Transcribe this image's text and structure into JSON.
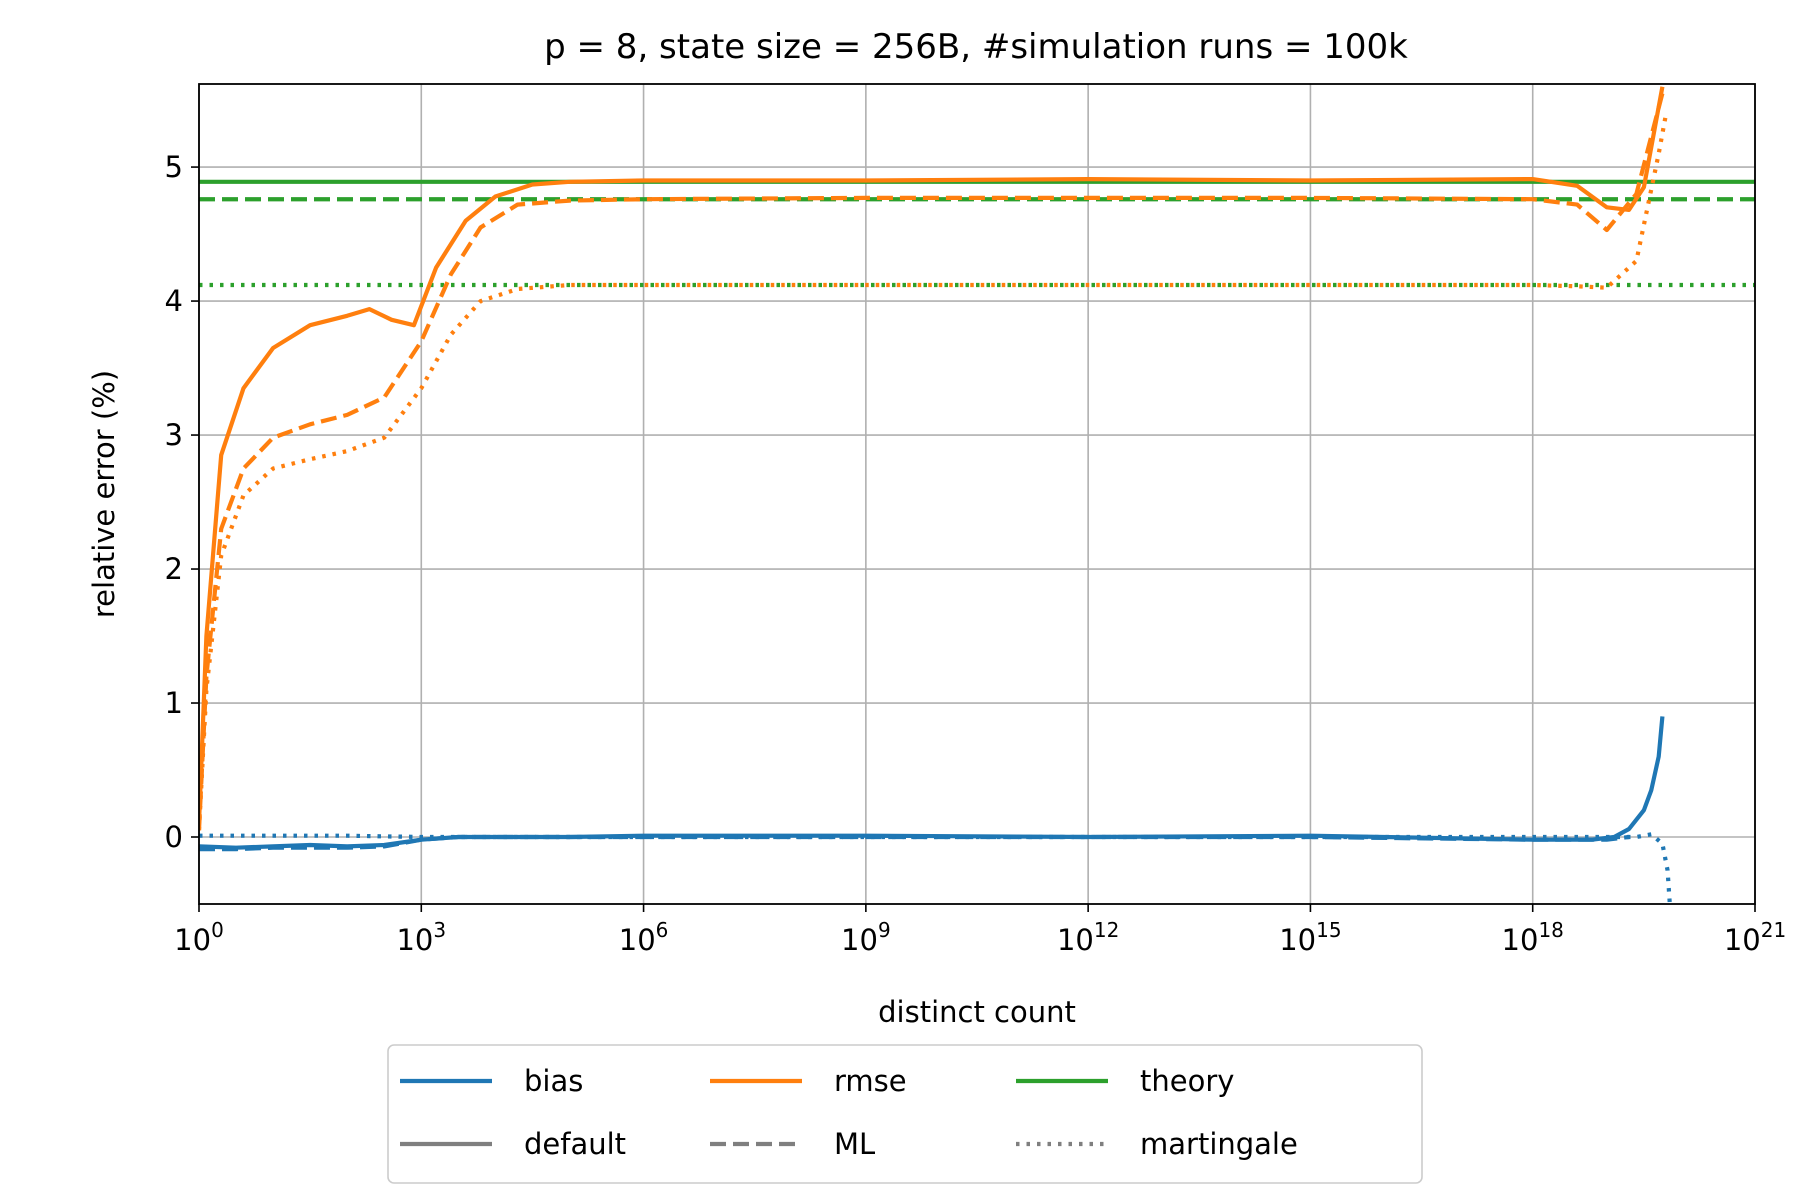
{
  "chart_data": {
    "type": "line",
    "title": "p = 8, state size = 256B, #simulation runs = 100k",
    "xlabel": "distinct count",
    "ylabel": "relative error (%)",
    "x_scale": "log10",
    "xlim": [
      1,
      1e+21
    ],
    "ylim": [
      -0.5,
      5.62
    ],
    "grid": true,
    "x_ticks": [
      {
        "exp": 0,
        "base": "10",
        "sup": "0"
      },
      {
        "exp": 3,
        "base": "10",
        "sup": "3"
      },
      {
        "exp": 6,
        "base": "10",
        "sup": "6"
      },
      {
        "exp": 9,
        "base": "10",
        "sup": "9"
      },
      {
        "exp": 12,
        "base": "10",
        "sup": "12"
      },
      {
        "exp": 15,
        "base": "10",
        "sup": "15"
      },
      {
        "exp": 18,
        "base": "10",
        "sup": "18"
      },
      {
        "exp": 21,
        "base": "10",
        "sup": "21"
      }
    ],
    "y_ticks": [
      {
        "value": 0,
        "label": "0"
      },
      {
        "value": 1,
        "label": "1"
      },
      {
        "value": 2,
        "label": "2"
      },
      {
        "value": 3,
        "label": "3"
      },
      {
        "value": 4,
        "label": "4"
      },
      {
        "value": 5,
        "label": "5"
      }
    ],
    "colors": {
      "bias": "#1f77b4",
      "rmse": "#ff7f0e",
      "theory": "#2ca02c",
      "legend_gray": "#7f7f7f"
    },
    "legend": {
      "placement": "bottom-center",
      "entries": [
        {
          "label": "bias",
          "kind": "color",
          "color": "#1f77b4",
          "style": "solid"
        },
        {
          "label": "rmse",
          "kind": "color",
          "color": "#ff7f0e",
          "style": "solid"
        },
        {
          "label": "theory",
          "kind": "color",
          "color": "#2ca02c",
          "style": "solid"
        },
        {
          "label": "default",
          "kind": "style",
          "color": "#7f7f7f",
          "style": "solid"
        },
        {
          "label": "ML",
          "kind": "style",
          "color": "#7f7f7f",
          "style": "dashed"
        },
        {
          "label": "martingale",
          "kind": "style",
          "color": "#7f7f7f",
          "style": "dotted"
        }
      ]
    },
    "series": [
      {
        "metric": "theory",
        "estimator": "default",
        "color": "#2ca02c",
        "style": "solid",
        "hline": 4.89
      },
      {
        "metric": "theory",
        "estimator": "ML",
        "color": "#2ca02c",
        "style": "dashed",
        "hline": 4.76
      },
      {
        "metric": "theory",
        "estimator": "martingale",
        "color": "#2ca02c",
        "style": "dotted",
        "hline": 4.12
      },
      {
        "metric": "rmse",
        "estimator": "default",
        "color": "#ff7f0e",
        "style": "solid",
        "log10x": [
          0,
          0.1,
          0.3,
          0.6,
          1.0,
          1.5,
          2.0,
          2.3,
          2.6,
          2.9,
          3.2,
          3.6,
          4.0,
          4.5,
          5.0,
          6,
          9,
          12,
          15,
          18,
          18.6,
          19.0,
          19.3,
          19.5,
          19.75
        ],
        "y": [
          0.1,
          1.5,
          2.85,
          3.35,
          3.65,
          3.82,
          3.89,
          3.94,
          3.86,
          3.82,
          4.25,
          4.6,
          4.78,
          4.87,
          4.89,
          4.9,
          4.9,
          4.91,
          4.9,
          4.91,
          4.86,
          4.7,
          4.68,
          4.85,
          5.6
        ]
      },
      {
        "metric": "rmse",
        "estimator": "ML",
        "color": "#ff7f0e",
        "style": "dashed",
        "log10x": [
          0,
          0.1,
          0.3,
          0.6,
          1.0,
          1.5,
          2.0,
          2.5,
          3.0,
          3.4,
          3.8,
          4.3,
          5.0,
          6,
          9,
          12,
          15,
          18,
          18.6,
          19.0,
          19.4,
          19.75
        ],
        "y": [
          0.05,
          1.2,
          2.3,
          2.75,
          2.98,
          3.08,
          3.15,
          3.28,
          3.7,
          4.2,
          4.55,
          4.72,
          4.75,
          4.76,
          4.77,
          4.77,
          4.77,
          4.76,
          4.72,
          4.53,
          4.8,
          5.55
        ]
      },
      {
        "metric": "rmse",
        "estimator": "martingale",
        "color": "#ff7f0e",
        "style": "dotted",
        "log10x": [
          0,
          0.1,
          0.3,
          0.6,
          1.0,
          1.5,
          2.0,
          2.5,
          3.0,
          3.4,
          3.8,
          4.3,
          5.0,
          6,
          9,
          12,
          15,
          18,
          18.6,
          19.0,
          19.4,
          19.7,
          19.8
        ],
        "y": [
          0.05,
          1.1,
          2.1,
          2.55,
          2.75,
          2.82,
          2.88,
          2.98,
          3.35,
          3.75,
          4.0,
          4.09,
          4.12,
          4.12,
          4.12,
          4.12,
          4.12,
          4.12,
          4.11,
          4.1,
          4.3,
          5.1,
          5.4
        ]
      },
      {
        "metric": "bias",
        "estimator": "default",
        "color": "#1f77b4",
        "style": "solid",
        "log10x": [
          0,
          0.5,
          1.0,
          1.5,
          2.0,
          2.5,
          3.0,
          3.5,
          4.0,
          5,
          6,
          9,
          12,
          15,
          18,
          18.8,
          19.1,
          19.3,
          19.5,
          19.6,
          19.7,
          19.75
        ],
        "y": [
          -0.07,
          -0.08,
          -0.07,
          -0.06,
          -0.07,
          -0.06,
          -0.02,
          0.0,
          0.0,
          0.0,
          0.01,
          0.01,
          0.0,
          0.01,
          -0.02,
          -0.02,
          0.0,
          0.06,
          0.2,
          0.35,
          0.6,
          0.9
        ]
      },
      {
        "metric": "bias",
        "estimator": "ML",
        "color": "#1f77b4",
        "style": "dashed",
        "log10x": [
          0,
          0.5,
          1.0,
          1.5,
          2.0,
          2.5,
          3.0,
          3.5,
          4.0,
          6,
          9,
          12,
          15,
          18,
          19.0,
          19.3
        ],
        "y": [
          -0.09,
          -0.09,
          -0.08,
          -0.08,
          -0.08,
          -0.07,
          -0.02,
          0.0,
          0.0,
          0.0,
          0.0,
          0.0,
          0.0,
          -0.02,
          -0.02,
          0.0
        ]
      },
      {
        "metric": "bias",
        "estimator": "martingale",
        "color": "#1f77b4",
        "style": "dotted",
        "log10x": [
          0,
          1.0,
          2.0,
          3.0,
          6,
          9,
          12,
          15,
          18,
          19.0,
          19.4,
          19.6,
          19.75,
          19.82,
          19.85
        ],
        "y": [
          0.01,
          0.01,
          0.01,
          0.0,
          0.0,
          0.0,
          0.0,
          0.0,
          0.0,
          0.0,
          0.0,
          0.02,
          -0.05,
          -0.25,
          -0.5
        ]
      }
    ]
  }
}
